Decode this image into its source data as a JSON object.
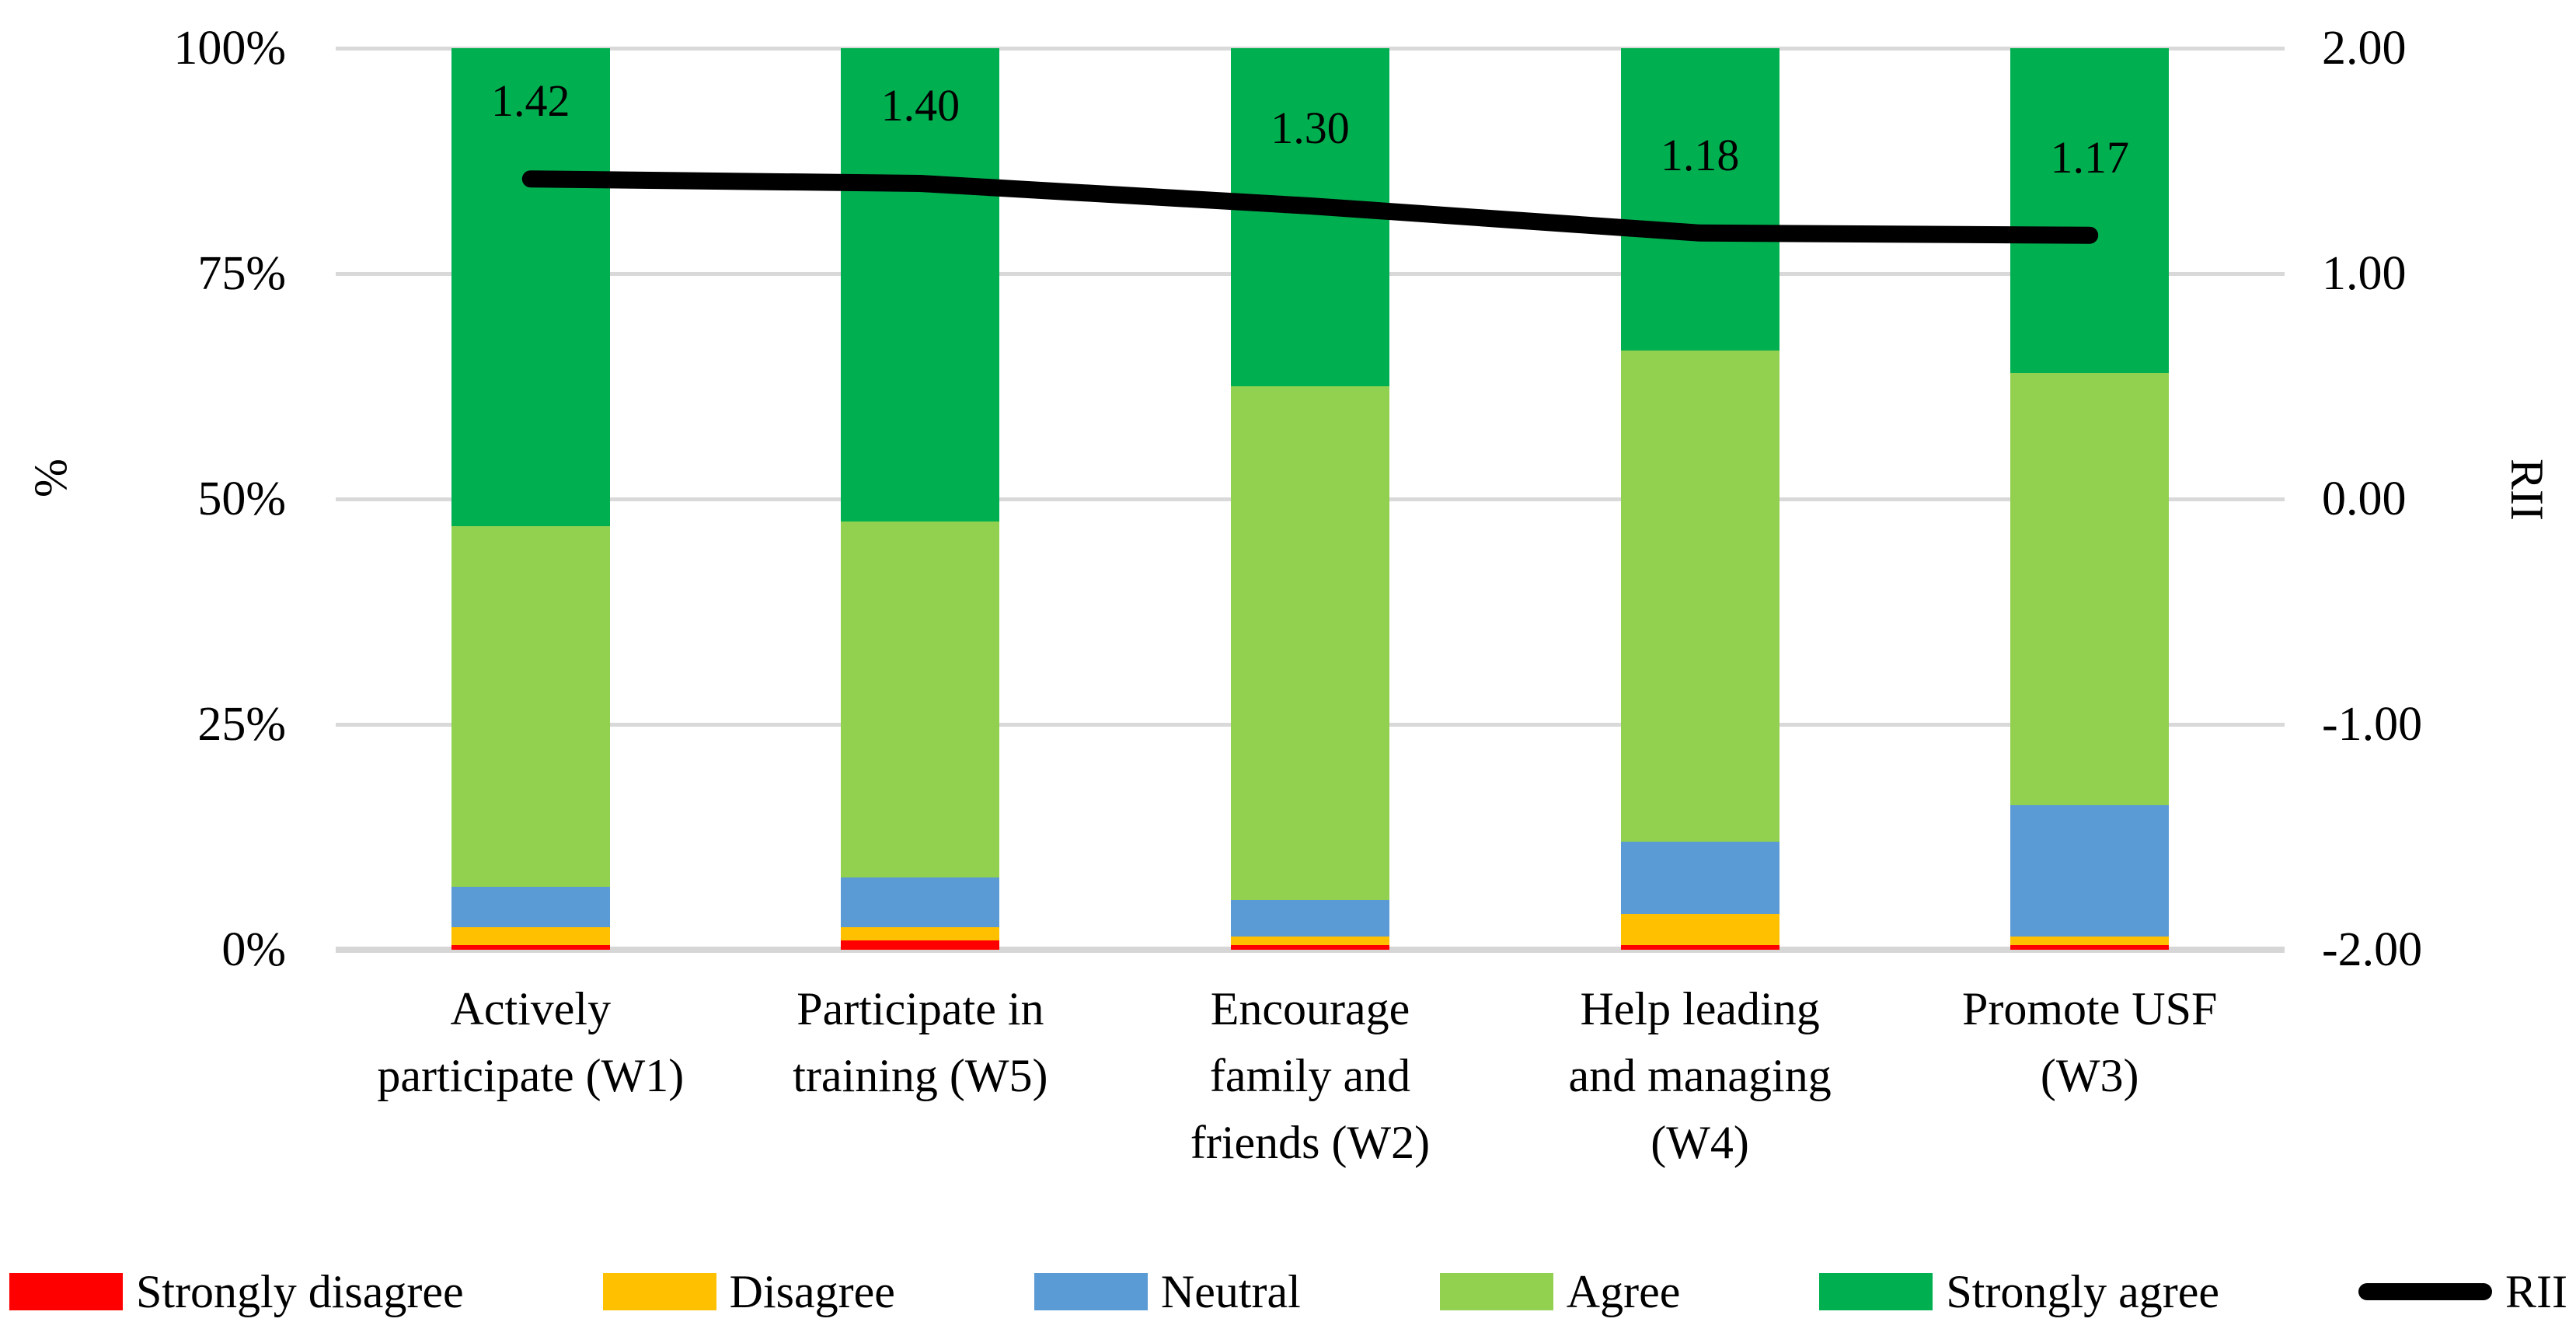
{
  "chart_data": {
    "type": "bar",
    "stacked": true,
    "percent_stacked": true,
    "grid": true,
    "legend_position": "bottom",
    "categories": [
      "Actively participate (W1)",
      "Participate in training (W5)",
      "Encourage family and friends (W2)",
      "Help leading and managing (W4)",
      "Promote USF (W3)"
    ],
    "category_lines": [
      [
        "Actively",
        "participate (W1)"
      ],
      [
        "Participate in",
        "training (W5)"
      ],
      [
        "Encourage",
        "family and",
        "friends (W2)"
      ],
      [
        "Help leading",
        "and managing",
        "(W4)"
      ],
      [
        "Promote USF",
        "(W3)"
      ]
    ],
    "series": [
      {
        "name": "Strongly disagree",
        "color": "#FF0000",
        "values": [
          0.5,
          1.0,
          0.5,
          0.5,
          0.5
        ]
      },
      {
        "name": "Disagree",
        "color": "#FFC000",
        "values": [
          2.0,
          1.5,
          1.0,
          3.5,
          1.0
        ]
      },
      {
        "name": "Neutral",
        "color": "#5B9BD5",
        "values": [
          4.5,
          5.5,
          4.0,
          8.0,
          14.5
        ]
      },
      {
        "name": "Agree",
        "color": "#92D050",
        "values": [
          40.0,
          39.5,
          57.0,
          54.5,
          48.0
        ]
      },
      {
        "name": "Strongly agree",
        "color": "#00B050",
        "values": [
          53.0,
          52.5,
          37.5,
          33.5,
          36.0
        ]
      }
    ],
    "line_series": {
      "name": "RII",
      "color": "#000000",
      "axis": "right",
      "values": [
        1.42,
        1.4,
        1.3,
        1.18,
        1.17
      ],
      "labels": [
        "1.42",
        "1.40",
        "1.30",
        "1.18",
        "1.17"
      ]
    },
    "left_axis": {
      "title": "%",
      "min": 0,
      "max": 100,
      "ticks": [
        "0%",
        "25%",
        "50%",
        "75%",
        "100%"
      ]
    },
    "right_axis": {
      "title": "RII",
      "min": -2,
      "max": 2,
      "ticks": [
        "-2.00",
        "-1.00",
        "0.00",
        "1.00",
        "2.00"
      ]
    },
    "colors": {
      "gridline": "#D9D9D9",
      "text": "#000000",
      "background": "#FFFFFF"
    }
  }
}
